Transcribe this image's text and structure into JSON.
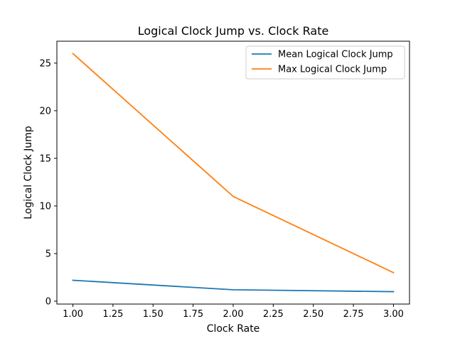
{
  "chart_data": {
    "type": "line",
    "title": "Logical Clock Jump vs. Clock Rate",
    "xlabel": "Clock Rate",
    "ylabel": "Logical Clock Jump",
    "x": [
      1.0,
      2.0,
      3.0
    ],
    "xlim": [
      0.9,
      3.1
    ],
    "ylim": [
      -0.3,
      27.3
    ],
    "x_ticks": [
      1.0,
      1.25,
      1.5,
      1.75,
      2.0,
      2.25,
      2.5,
      2.75,
      3.0
    ],
    "x_tick_labels": [
      "1.00",
      "1.25",
      "1.50",
      "1.75",
      "2.00",
      "2.25",
      "2.50",
      "2.75",
      "3.00"
    ],
    "y_ticks": [
      0,
      5,
      10,
      15,
      20,
      25
    ],
    "y_tick_labels": [
      "0",
      "5",
      "10",
      "15",
      "20",
      "25"
    ],
    "grid": false,
    "legend_position": "top-right",
    "series": [
      {
        "name": "Mean Logical Clock Jump",
        "color": "#1f77b4",
        "values": [
          2.2,
          1.2,
          1.0
        ]
      },
      {
        "name": "Max Logical Clock Jump",
        "color": "#ff7f0e",
        "values": [
          26,
          11,
          3
        ]
      }
    ]
  }
}
